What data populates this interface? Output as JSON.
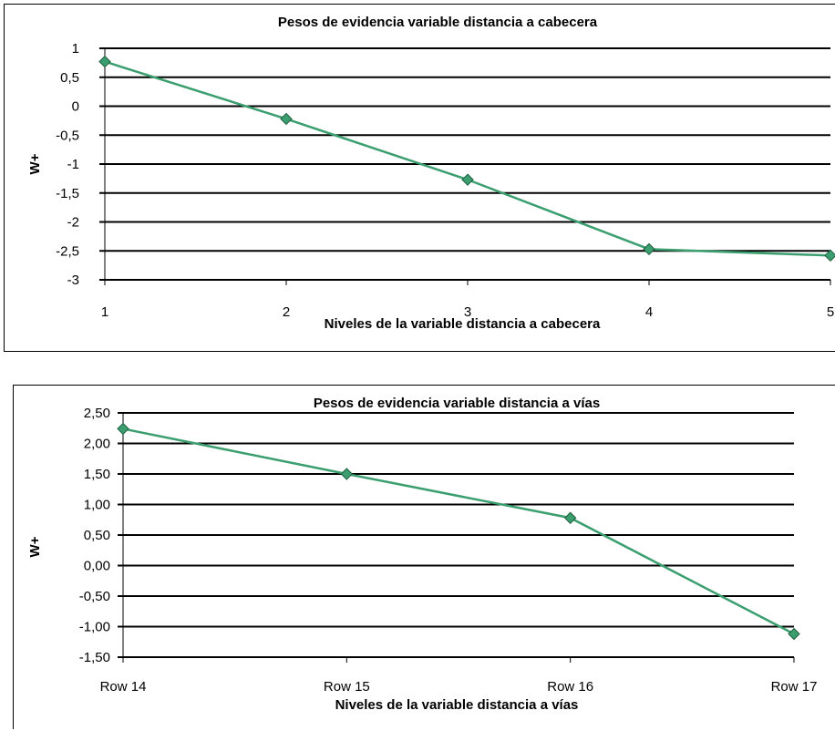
{
  "charts": [
    {
      "chart_data": {
        "type": "line",
        "title": "Pesos de evidencia variable distancia a cabecera",
        "xlabel": "Niveles de la variable distancia a cabecera",
        "ylabel": "W+",
        "categories": [
          "1",
          "2",
          "3",
          "4",
          "5"
        ],
        "yticks": [
          "1",
          "0,5",
          "0",
          "-0,5",
          "-1",
          "-1,5",
          "-2",
          "-2,5",
          "-3"
        ],
        "ylim": [
          -3,
          1
        ],
        "grid": true,
        "series": [
          {
            "values": [
              0.77,
              -0.22,
              -1.27,
              -2.47,
              -2.58
            ]
          }
        ]
      }
    },
    {
      "chart_data": {
        "type": "line",
        "title": "Pesos de evidencia variable distancia a vías",
        "xlabel": "Niveles de la variable distancia a vías",
        "ylabel": "W+",
        "categories": [
          "Row 14",
          "Row 15",
          "Row 16",
          "Row 17"
        ],
        "yticks": [
          "2,50",
          "2,00",
          "1,50",
          "1,00",
          "0,50",
          "0,00",
          "-0,50",
          "-1,00",
          "-1,50"
        ],
        "ylim": [
          -1.5,
          2.5
        ],
        "grid": true,
        "series": [
          {
            "values": [
              2.24,
              1.5,
              0.78,
              -1.12
            ]
          }
        ]
      }
    }
  ],
  "colors": {
    "line": "#3a9e6e",
    "marker": "#3a9e6e",
    "grid": "#000000"
  }
}
